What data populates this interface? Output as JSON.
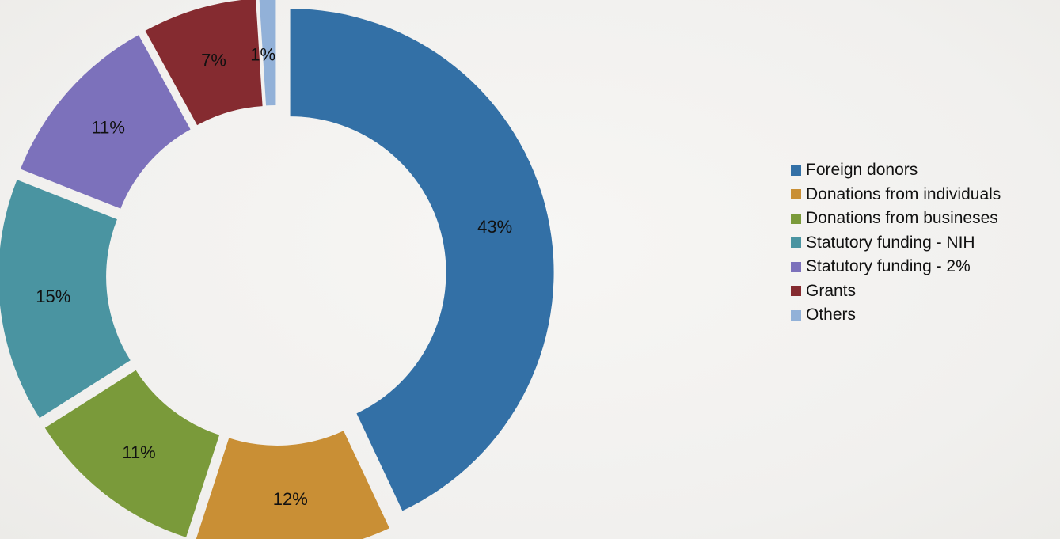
{
  "chart_data": {
    "type": "pie",
    "style": "exploded-donut",
    "legend_position": "right",
    "slices": [
      {
        "label": "Foreign donors",
        "value": 43,
        "value_label": "43%",
        "color": "#3370a6"
      },
      {
        "label": "Donations from individuals",
        "value": 12,
        "value_label": "12%",
        "color": "#c98f35"
      },
      {
        "label": "Donations from busineses",
        "value": 11,
        "value_label": "11%",
        "color": "#7a9a3a"
      },
      {
        "label": "Statutory funding - NIH",
        "value": 15,
        "value_label": "15%",
        "color": "#4a94a1"
      },
      {
        "label": "Statutory funding - 2%",
        "value": 11,
        "value_label": "11%",
        "color": "#7c71bb"
      },
      {
        "label": "Grants",
        "value": 7,
        "value_label": "7%",
        "color": "#852b30"
      },
      {
        "label": "Others",
        "value": 1,
        "value_label": "1%",
        "color": "#92b1d8"
      }
    ]
  }
}
